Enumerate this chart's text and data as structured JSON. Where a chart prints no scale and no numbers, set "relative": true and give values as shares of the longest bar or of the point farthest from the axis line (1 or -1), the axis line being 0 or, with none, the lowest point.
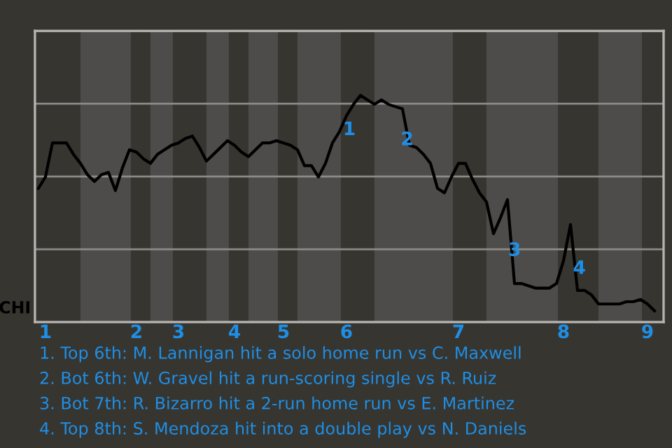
{
  "chart_data": {
    "type": "line",
    "relative": true,
    "ylabel": "CHI",
    "categories": [
      null,
      "1",
      null,
      null,
      null,
      null,
      null,
      null,
      null,
      null,
      null,
      null,
      null,
      null,
      "2",
      null,
      null,
      null,
      null,
      null,
      "3",
      null,
      null,
      null,
      null,
      null,
      null,
      null,
      "4",
      null,
      null,
      null,
      null,
      null,
      null,
      "5",
      null,
      null,
      null,
      null,
      null,
      null,
      null,
      null,
      "6",
      null,
      null,
      null,
      null,
      null,
      null,
      null,
      null,
      null,
      null,
      null,
      null,
      null,
      null,
      null,
      "7",
      null,
      null,
      null,
      null,
      null,
      null,
      null,
      null,
      null,
      null,
      null,
      null,
      null,
      null,
      "8",
      null,
      null,
      null,
      null,
      null,
      null,
      null,
      null,
      null,
      null,
      null,
      "9",
      null
    ],
    "series": [
      {
        "color": "#000000",
        "values": [
          0.59,
          0.64,
          0.79,
          0.79,
          0.79,
          0.74,
          0.7,
          0.65,
          0.62,
          0.65,
          0.66,
          0.58,
          0.68,
          0.76,
          0.75,
          0.72,
          0.7,
          0.74,
          0.76,
          0.78,
          0.79,
          0.81,
          0.82,
          0.77,
          0.71,
          0.74,
          0.77,
          0.8,
          0.78,
          0.75,
          0.73,
          0.76,
          0.79,
          0.79,
          0.8,
          0.79,
          0.78,
          0.76,
          0.69,
          0.69,
          0.64,
          0.7,
          0.79,
          0.84,
          0.91,
          0.96,
          1,
          0.98,
          0.96,
          0.98,
          0.96,
          0.95,
          0.94,
          0.78,
          0.77,
          0.74,
          0.7,
          0.59,
          0.57,
          0.64,
          0.7,
          0.7,
          0.63,
          0.57,
          0.53,
          0.39,
          0.46,
          0.54,
          0.17,
          0.17,
          0.16,
          0.15,
          0.15,
          0.15,
          0.17,
          0.27,
          0.43,
          0.14,
          0.14,
          0.12,
          0.08,
          0.08,
          0.08,
          0.08,
          0.09,
          0.09,
          0.1,
          0.08,
          0.05
        ]
      }
    ],
    "tick_labels": "x",
    "grid": "y",
    "marker": "none",
    "line_style": "solid",
    "annotations": [
      "1",
      "2",
      "3",
      "4",
      "1. Top 6th: M. Lannigan hit a solo home run vs C. Maxwell",
      "2. Bot 6th: W. Gravel hit a run-scoring single vs R. Ruiz",
      "3. Bot 7th: R. Bizarro hit a 2-run home run vs E. Martinez",
      "4. Top 8th: S. Mendoza hit into a double play vs N. Daniels"
    ]
  }
}
